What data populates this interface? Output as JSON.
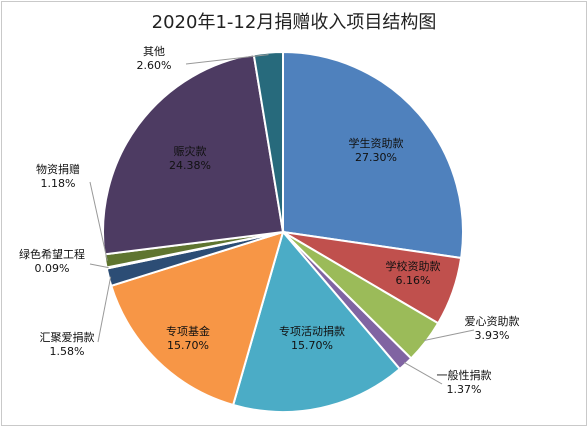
{
  "chart_data": {
    "type": "pie",
    "title": "2020年1-12月捐赠收入项目结构图",
    "slices": [
      {
        "name": "学生资助款",
        "percent_label": "27.30%",
        "value": 27.3,
        "color": "#4F81BD"
      },
      {
        "name": "学校资助款",
        "percent_label": "6.16%",
        "value": 6.16,
        "color": "#C0504D"
      },
      {
        "name": "爱心资助款",
        "percent_label": "3.93%",
        "value": 3.93,
        "color": "#9BBB59"
      },
      {
        "name": "一般性捐款",
        "percent_label": "1.37%",
        "value": 1.37,
        "color": "#8064A2"
      },
      {
        "name": "专项活动捐款",
        "percent_label": "15.70%",
        "value": 15.7,
        "color": "#4BACC6"
      },
      {
        "name": "专项基金",
        "percent_label": "15.70%",
        "value": 15.7,
        "color": "#F79646"
      },
      {
        "name": "汇聚爱捐款",
        "percent_label": "1.58%",
        "value": 1.58,
        "color": "#2C4D75"
      },
      {
        "name": "绿色希望工程",
        "percent_label": "0.09%",
        "value": 0.09,
        "color": "#772C2A"
      },
      {
        "name": "物资捐赠",
        "percent_label": "1.18%",
        "value": 1.18,
        "color": "#5F7530"
      },
      {
        "name": "赈灾款",
        "percent_label": "24.38%",
        "value": 24.38,
        "color": "#4D3B62"
      },
      {
        "name": "其他",
        "percent_label": "2.60%",
        "value": 2.6,
        "color": "#276A7C"
      }
    ],
    "start_angle": "top",
    "direction": "clockwise",
    "legend": "none"
  }
}
